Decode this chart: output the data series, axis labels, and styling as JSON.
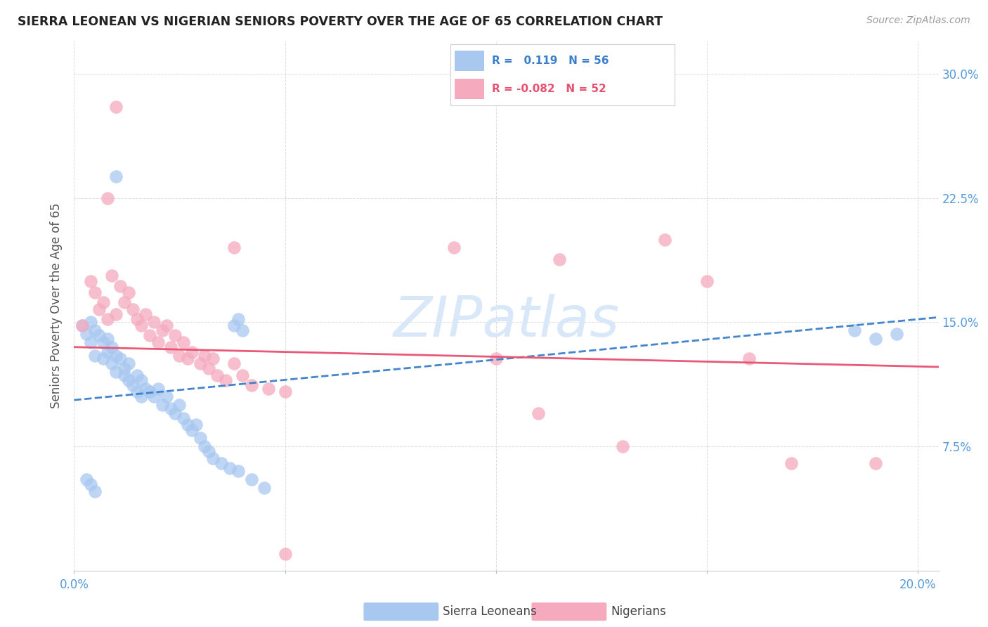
{
  "title": "SIERRA LEONEAN VS NIGERIAN SENIORS POVERTY OVER THE AGE OF 65 CORRELATION CHART",
  "source": "Source: ZipAtlas.com",
  "ylabel": "Seniors Poverty Over the Age of 65",
  "xlim": [
    0.0,
    0.205
  ],
  "ylim": [
    0.0,
    0.32
  ],
  "xticks": [
    0.0,
    0.05,
    0.1,
    0.15,
    0.2
  ],
  "yticks": [
    0.0,
    0.075,
    0.15,
    0.225,
    0.3
  ],
  "blue_R": 0.119,
  "blue_N": 56,
  "pink_R": -0.082,
  "pink_N": 52,
  "blue_color": "#A8C8F0",
  "pink_color": "#F5AABE",
  "blue_line_color": "#3A7FCC",
  "pink_line_color": "#E85070",
  "title_color": "#222222",
  "source_color": "#999999",
  "axis_tick_color": "#5599DD",
  "grid_color": "#DDDDDD",
  "watermark_color": "#D8E8F8",
  "blue_scatter": [
    [
      0.002,
      0.148
    ],
    [
      0.003,
      0.143
    ],
    [
      0.004,
      0.15
    ],
    [
      0.004,
      0.138
    ],
    [
      0.005,
      0.145
    ],
    [
      0.005,
      0.13
    ],
    [
      0.006,
      0.142
    ],
    [
      0.007,
      0.138
    ],
    [
      0.007,
      0.128
    ],
    [
      0.008,
      0.14
    ],
    [
      0.008,
      0.132
    ],
    [
      0.009,
      0.135
    ],
    [
      0.009,
      0.125
    ],
    [
      0.01,
      0.13
    ],
    [
      0.01,
      0.12
    ],
    [
      0.011,
      0.128
    ],
    [
      0.012,
      0.122
    ],
    [
      0.012,
      0.118
    ],
    [
      0.013,
      0.115
    ],
    [
      0.013,
      0.125
    ],
    [
      0.014,
      0.112
    ],
    [
      0.015,
      0.118
    ],
    [
      0.015,
      0.108
    ],
    [
      0.016,
      0.115
    ],
    [
      0.016,
      0.105
    ],
    [
      0.017,
      0.11
    ],
    [
      0.018,
      0.108
    ],
    [
      0.019,
      0.105
    ],
    [
      0.02,
      0.11
    ],
    [
      0.021,
      0.1
    ],
    [
      0.022,
      0.105
    ],
    [
      0.023,
      0.098
    ],
    [
      0.024,
      0.095
    ],
    [
      0.025,
      0.1
    ],
    [
      0.026,
      0.092
    ],
    [
      0.027,
      0.088
    ],
    [
      0.028,
      0.085
    ],
    [
      0.029,
      0.088
    ],
    [
      0.03,
      0.08
    ],
    [
      0.031,
      0.075
    ],
    [
      0.032,
      0.072
    ],
    [
      0.033,
      0.068
    ],
    [
      0.035,
      0.065
    ],
    [
      0.037,
      0.062
    ],
    [
      0.039,
      0.06
    ],
    [
      0.042,
      0.055
    ],
    [
      0.045,
      0.05
    ],
    [
      0.003,
      0.055
    ],
    [
      0.004,
      0.052
    ],
    [
      0.005,
      0.048
    ],
    [
      0.01,
      0.238
    ],
    [
      0.038,
      0.148
    ],
    [
      0.039,
      0.152
    ],
    [
      0.04,
      0.145
    ],
    [
      0.185,
      0.145
    ],
    [
      0.19,
      0.14
    ],
    [
      0.195,
      0.143
    ]
  ],
  "pink_scatter": [
    [
      0.002,
      0.148
    ],
    [
      0.004,
      0.175
    ],
    [
      0.005,
      0.168
    ],
    [
      0.006,
      0.158
    ],
    [
      0.007,
      0.162
    ],
    [
      0.008,
      0.152
    ],
    [
      0.009,
      0.178
    ],
    [
      0.01,
      0.155
    ],
    [
      0.01,
      0.28
    ],
    [
      0.011,
      0.172
    ],
    [
      0.012,
      0.162
    ],
    [
      0.013,
      0.168
    ],
    [
      0.014,
      0.158
    ],
    [
      0.015,
      0.152
    ],
    [
      0.016,
      0.148
    ],
    [
      0.017,
      0.155
    ],
    [
      0.018,
      0.142
    ],
    [
      0.019,
      0.15
    ],
    [
      0.02,
      0.138
    ],
    [
      0.021,
      0.145
    ],
    [
      0.022,
      0.148
    ],
    [
      0.023,
      0.135
    ],
    [
      0.024,
      0.142
    ],
    [
      0.025,
      0.13
    ],
    [
      0.026,
      0.138
    ],
    [
      0.027,
      0.128
    ],
    [
      0.028,
      0.132
    ],
    [
      0.03,
      0.125
    ],
    [
      0.031,
      0.13
    ],
    [
      0.032,
      0.122
    ],
    [
      0.033,
      0.128
    ],
    [
      0.034,
      0.118
    ],
    [
      0.036,
      0.115
    ],
    [
      0.038,
      0.125
    ],
    [
      0.04,
      0.118
    ],
    [
      0.042,
      0.112
    ],
    [
      0.046,
      0.11
    ],
    [
      0.05,
      0.108
    ],
    [
      0.05,
      0.01
    ],
    [
      0.008,
      0.225
    ],
    [
      0.038,
      0.195
    ],
    [
      0.09,
      0.195
    ],
    [
      0.115,
      0.188
    ],
    [
      0.14,
      0.2
    ],
    [
      0.15,
      0.175
    ],
    [
      0.16,
      0.128
    ],
    [
      0.1,
      0.128
    ],
    [
      0.11,
      0.095
    ],
    [
      0.13,
      0.075
    ],
    [
      0.17,
      0.065
    ],
    [
      0.19,
      0.065
    ]
  ],
  "blue_line_x": [
    0.0,
    0.205
  ],
  "blue_line_y": [
    0.103,
    0.153
  ],
  "pink_line_x": [
    0.0,
    0.205
  ],
  "pink_line_y": [
    0.135,
    0.123
  ]
}
